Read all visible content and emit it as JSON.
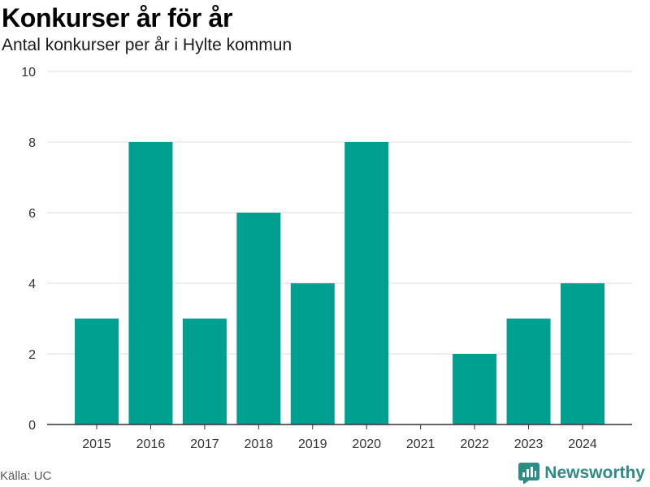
{
  "header": {
    "title": "Konkurser år för år",
    "subtitle": "Antal konkurser per år i Hylte kommun"
  },
  "footer": {
    "source": "Källa: UC",
    "brand": "Newsworthy",
    "brand_color": "#2e8b86"
  },
  "chart_data": {
    "type": "bar",
    "categories": [
      "2015",
      "2016",
      "2017",
      "2018",
      "2019",
      "2020",
      "2021",
      "2022",
      "2023",
      "2024"
    ],
    "values": [
      3,
      8,
      3,
      6,
      4,
      8,
      0,
      2,
      3,
      4
    ],
    "xlabel": "",
    "ylabel": "",
    "ylim": [
      0,
      10
    ],
    "yticks": [
      0,
      2,
      4,
      6,
      8,
      10
    ],
    "grid": true,
    "bar_color": "#00a091",
    "legend": "none"
  }
}
